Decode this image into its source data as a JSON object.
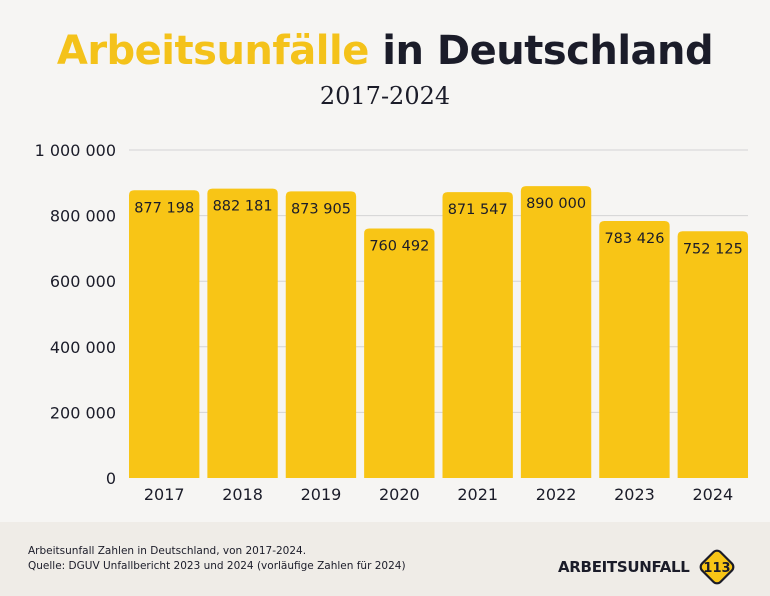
{
  "header": {
    "title_highlight": "Arbeitsunfälle",
    "title_rest": "in Deutschland",
    "subtitle": "2017-2024"
  },
  "colors": {
    "accent": "#f8c516",
    "title_accent": "#f4c21a",
    "text": "#1b1c29",
    "grid": "#d4d4d4",
    "background": "#f6f5f3",
    "footer_bg": "#efece7"
  },
  "chart_data": {
    "type": "bar",
    "title": "Arbeitsunfälle in Deutschland",
    "subtitle": "2017-2024",
    "xlabel": "",
    "ylabel": "",
    "categories": [
      "2017",
      "2018",
      "2019",
      "2020",
      "2021",
      "2022",
      "2023",
      "2024"
    ],
    "values": [
      877198,
      882181,
      873905,
      760492,
      871547,
      890000,
      783426,
      752125
    ],
    "value_labels": [
      "877 198",
      "882 181",
      "873 905",
      "760 492",
      "871 547",
      "890 000",
      "783 426",
      "752 125"
    ],
    "ylim": [
      0,
      1000000
    ],
    "yticks": [
      0,
      200000,
      400000,
      600000,
      800000,
      1000000
    ],
    "ytick_labels": [
      "0",
      "200 000",
      "400 000",
      "600 000",
      "800 000",
      "1 000 000"
    ],
    "grid": true,
    "legend": "none"
  },
  "footer": {
    "caption_line1": "Arbeitsunfall Zahlen in Deutschland, von 2017-2024.",
    "caption_line2": "Quelle: DGUV Unfallbericht 2023 und 2024 (vorläufige Zahlen für 2024)",
    "brand_name": "ARBEITSUNFALL",
    "brand_number": "113"
  }
}
